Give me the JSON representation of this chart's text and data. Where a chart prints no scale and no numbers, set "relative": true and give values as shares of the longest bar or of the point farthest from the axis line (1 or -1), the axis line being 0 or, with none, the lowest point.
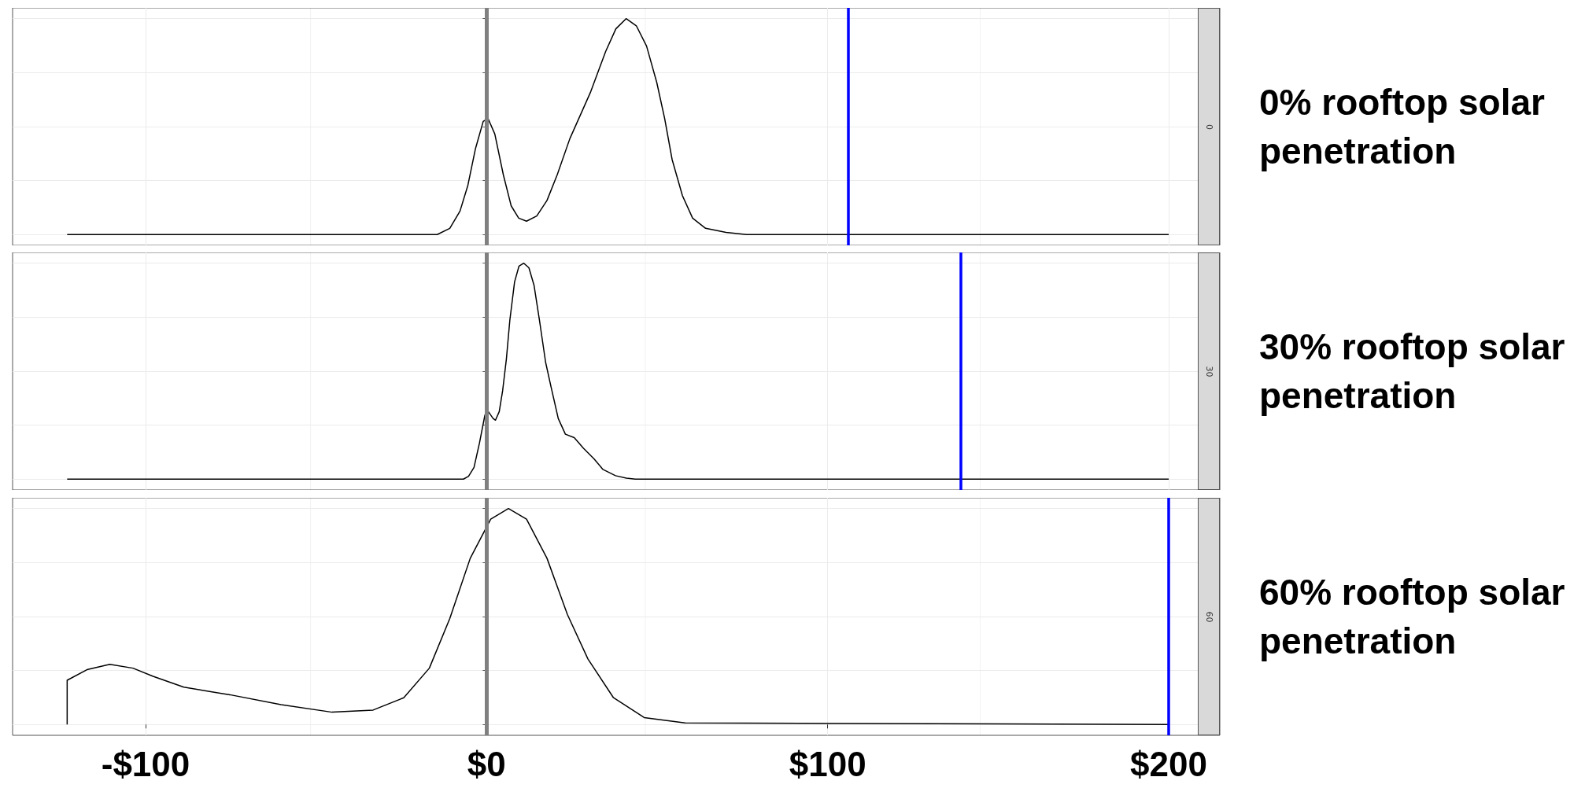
{
  "chart_data": [
    {
      "type": "line",
      "title": "0",
      "annotations": [
        "0% rooftop solar penetration"
      ],
      "relative": true,
      "xlim": [
        -139,
        215
      ],
      "xticks": [
        {
          "value": -100,
          "label": null
        },
        {
          "value": 0,
          "label": null
        },
        {
          "value": 100,
          "label": null
        },
        {
          "value": 200,
          "label": null
        }
      ],
      "tick_labels": false,
      "grid": true,
      "line_style": "solid",
      "series": [
        {
          "color": "#000000",
          "x": [
            -123,
            -14.5,
            -10.8,
            -7.8,
            -5.5,
            -3.3,
            -1,
            0.4,
            2.4,
            4.9,
            7.2,
            9.4,
            11.7,
            14.7,
            17.7,
            20.7,
            24.4,
            30.4,
            34.9,
            37.9,
            40.9,
            43.9,
            46.9,
            49.9,
            52.2,
            54.4,
            57.4,
            60.4,
            64.2,
            70.2,
            76.2,
            200
          ],
          "values": [
            0,
            0,
            0.029,
            0.109,
            0.228,
            0.396,
            0.524,
            0.538,
            0.466,
            0.277,
            0.133,
            0.076,
            0.062,
            0.086,
            0.158,
            0.277,
            0.444,
            0.657,
            0.848,
            0.953,
            1,
            0.967,
            0.873,
            0.704,
            0.538,
            0.347,
            0.181,
            0.076,
            0.029,
            0.01,
            0,
            0
          ]
        }
      ],
      "ref_lines": [
        {
          "axis": "x",
          "value": 0,
          "color": "#808080"
        },
        {
          "axis": "x",
          "value": 106,
          "color": "#0000ff"
        }
      ]
    },
    {
      "type": "line",
      "title": "30",
      "annotations": [
        "30% rooftop solar penetration"
      ],
      "relative": true,
      "xlim": [
        -139,
        215
      ],
      "xticks": [
        {
          "value": -100,
          "label": null
        },
        {
          "value": 0,
          "label": null
        },
        {
          "value": 100,
          "label": null
        },
        {
          "value": 200,
          "label": null
        }
      ],
      "tick_labels": false,
      "grid": true,
      "line_style": "solid",
      "series": [
        {
          "color": "#000000",
          "x": [
            -123,
            -6.8,
            -5.3,
            -3.7,
            -2.1,
            -0.5,
            0.5,
            1.9,
            2.6,
            3.7,
            4.7,
            5.8,
            6.8,
            8.2,
            9.5,
            10.9,
            12.4,
            13.9,
            15.5,
            17.3,
            18.9,
            21,
            23.1,
            25.7,
            28.4,
            31.5,
            34.1,
            37.8,
            41,
            43.6,
            200
          ],
          "values": [
            0,
            0,
            0.013,
            0.054,
            0.167,
            0.297,
            0.313,
            0.281,
            0.273,
            0.313,
            0.41,
            0.557,
            0.735,
            0.914,
            0.987,
            1,
            0.979,
            0.898,
            0.735,
            0.541,
            0.427,
            0.281,
            0.208,
            0.192,
            0.143,
            0.094,
            0.045,
            0.016,
            0.005,
            0,
            0
          ]
        }
      ],
      "ref_lines": [
        {
          "axis": "x",
          "value": 0,
          "color": "#808080"
        },
        {
          "axis": "x",
          "value": 139,
          "color": "#0000ff"
        }
      ]
    },
    {
      "type": "line",
      "title": "60",
      "annotations": [
        "60% rooftop solar penetration"
      ],
      "relative": true,
      "xlim": [
        -139,
        215
      ],
      "xticks": [
        {
          "value": -100,
          "label": "-$100"
        },
        {
          "value": 0,
          "label": "$0"
        },
        {
          "value": 100,
          "label": "$100"
        },
        {
          "value": 200,
          "label": "$200"
        }
      ],
      "tick_labels": "x",
      "grid": true,
      "line_style": "solid",
      "series": [
        {
          "color": "#000000",
          "x": [
            -123,
            -123,
            -117.2,
            -110.5,
            -103.7,
            -97.8,
            -88.8,
            -75.3,
            -60.3,
            -45.3,
            -33.3,
            -24.3,
            -16.8,
            -10.8,
            -4.8,
            1.2,
            6.4,
            11.7,
            17.7,
            23.7,
            29.7,
            37.2,
            46.2,
            58.2,
            200
          ],
          "values": [
            0,
            0.205,
            0.254,
            0.279,
            0.261,
            0.223,
            0.173,
            0.138,
            0.092,
            0.057,
            0.067,
            0.124,
            0.261,
            0.491,
            0.77,
            0.951,
            1,
            0.951,
            0.77,
            0.509,
            0.304,
            0.124,
            0.032,
            0.007,
            0
          ]
        }
      ],
      "ref_lines": [
        {
          "axis": "x",
          "value": 0,
          "color": "#808080"
        },
        {
          "axis": "x",
          "value": 200,
          "color": "#0000ff"
        }
      ]
    }
  ]
}
